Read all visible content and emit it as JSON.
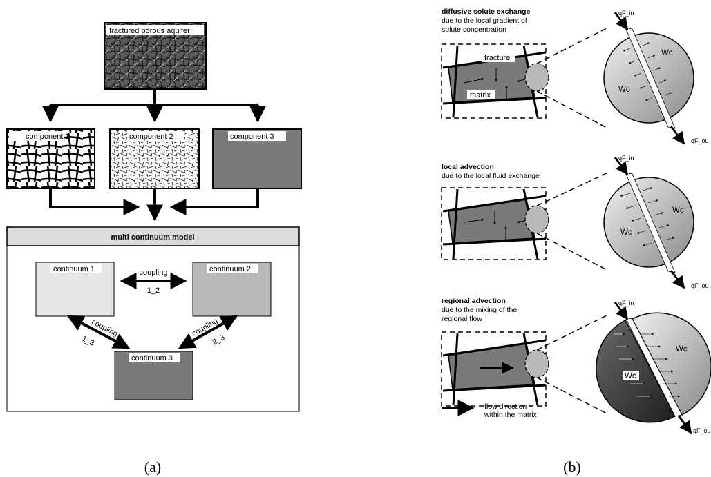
{
  "panel_a": {
    "aquifer_label": "fractured porous aquifer",
    "components": [
      "component 1",
      "component 2",
      "component 3"
    ],
    "model_title": "multi continuum model",
    "continua": [
      "continuum 1",
      "continuum 2",
      "continuum 3"
    ],
    "coupling_label": "coupling",
    "coupling_ids": [
      "1_2",
      "1_3",
      "2_3"
    ],
    "caption": "(a)"
  },
  "panel_b": {
    "mechanisms": [
      {
        "title": "diffusive solute  exchange",
        "desc1": "due to the local gradient of",
        "desc2": "solute concentration"
      },
      {
        "title": "local advection",
        "desc1": "due to the local fluid exchange",
        "desc2": ""
      },
      {
        "title": "regional advection",
        "desc1": "due to the mixing of the",
        "desc2": "regional flow"
      }
    ],
    "fracture_label": "fracture",
    "matrix_label": "matrix",
    "wc_label": "Wc",
    "q_in": "qF_in",
    "q_out": "qF_ou",
    "legend_line1": "flow direction",
    "legend_line2": "within the matrix",
    "caption": "(b)"
  },
  "colors": {
    "light_gray": "#e6e6e6",
    "mid_gray": "#b8b8b8",
    "dark_gray": "#7a7a7a",
    "aquifer": "#505050",
    "title_bar": "#dcdcdc"
  }
}
